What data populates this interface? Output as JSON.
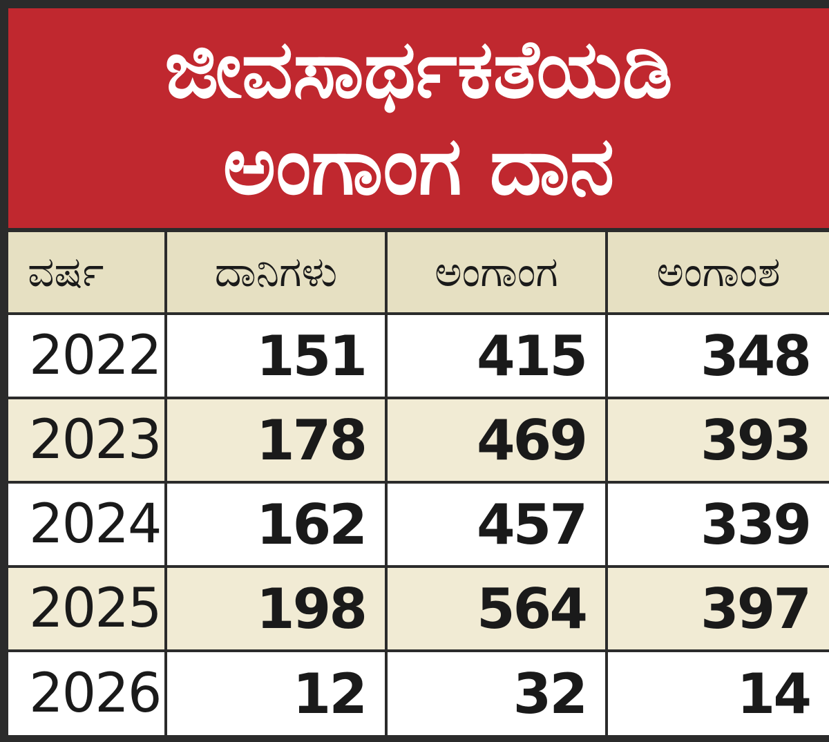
{
  "chart_data": {
    "type": "table",
    "title_lines": [
      "ಜೀವಸಾರ್ಥಕತೆಯಡಿ",
      "ಅಂಗಾಂಗ ದಾನ"
    ],
    "columns": [
      "ವರ್ಷ",
      "ದಾನಿಗಳು",
      "ಅಂಗಾಂಗ",
      "ಅಂಗಾಂಶ"
    ],
    "rows": [
      [
        "2022",
        "151",
        "415",
        "348"
      ],
      [
        "2023",
        "178",
        "469",
        "393"
      ],
      [
        "2024",
        "162",
        "457",
        "339"
      ],
      [
        "2025",
        "198",
        "564",
        "397"
      ],
      [
        "2026",
        "12",
        "32",
        "14"
      ]
    ]
  },
  "colors": {
    "title_background": "#c0282f",
    "header_background": "#e6e0c2",
    "alt_row_background": "#f1ebd4",
    "row_background": "#ffffff",
    "border": "#2b2b2b"
  }
}
